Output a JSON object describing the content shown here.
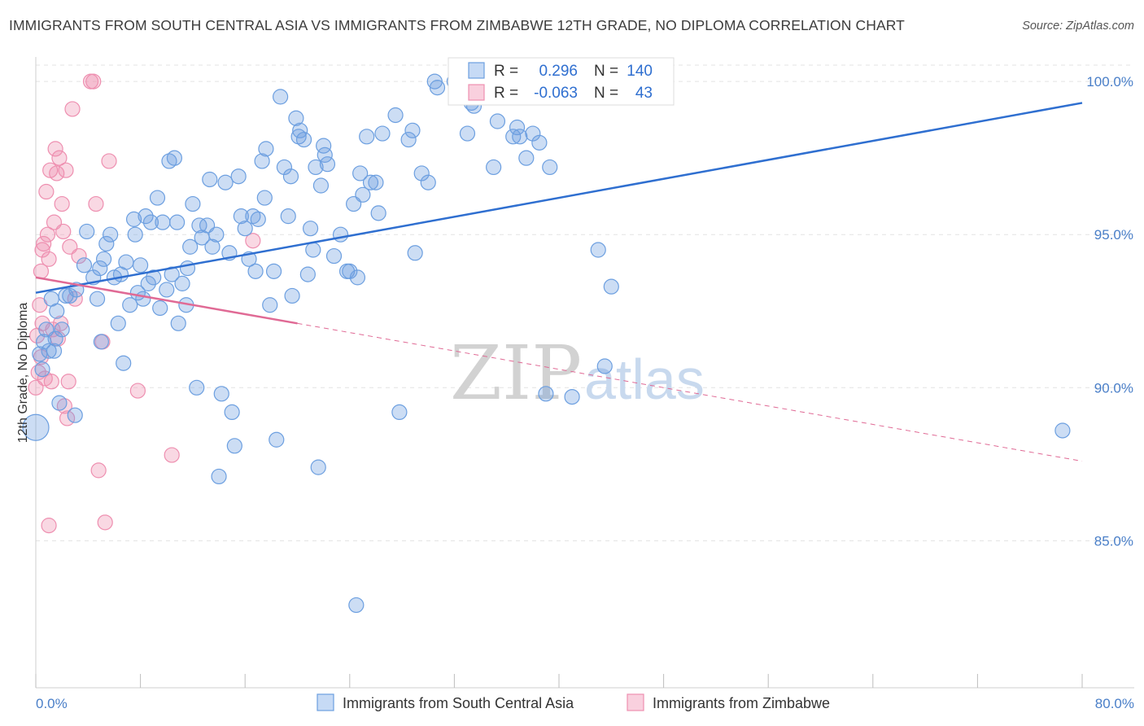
{
  "header": {
    "title": "IMMIGRANTS FROM SOUTH CENTRAL ASIA VS IMMIGRANTS FROM ZIMBABWE 12TH GRADE, NO DIPLOMA CORRELATION CHART",
    "source": "Source: ZipAtlas.com"
  },
  "watermark": {
    "zip": "ZIP",
    "atlas": "atlas"
  },
  "legend_box": {
    "rows": [
      {
        "r_label": "R =",
        "r_value": "0.296",
        "n_label": "N =",
        "n_value": "140"
      },
      {
        "r_label": "R =",
        "r_value": "-0.063",
        "n_label": "N =",
        "n_value": "43"
      }
    ]
  },
  "chart_data": {
    "type": "scatter",
    "title": "IMMIGRANTS FROM SOUTH CENTRAL ASIA VS IMMIGRANTS FROM ZIMBABWE 12TH GRADE, NO DIPLOMA CORRELATION CHART",
    "xlabel": "",
    "ylabel": "12th Grade, No Diploma",
    "xlim": [
      0,
      80
    ],
    "ylim": [
      80.2,
      100.8
    ],
    "x_tick_labels": [
      "0.0%",
      "80.0%"
    ],
    "y_ticks": [
      85,
      90,
      95,
      100
    ],
    "y_tick_labels": [
      "85.0%",
      "90.0%",
      "95.0%",
      "100.0%"
    ],
    "grid": true,
    "legend_position": "bottom",
    "colors": {
      "series1": "#6c9fe0",
      "series2": "#ee8fb0",
      "line1": "#2f6fd0",
      "line2": "#e06a95"
    },
    "series": [
      {
        "name": "Immigrants from South Central Asia",
        "r": 0.296,
        "n": 140,
        "trend": {
          "x": [
            0,
            80
          ],
          "y": [
            93.1,
            99.3
          ]
        },
        "points": [
          [
            0.0,
            88.7
          ],
          [
            0.3,
            91.1
          ],
          [
            0.5,
            90.6
          ],
          [
            0.6,
            91.5
          ],
          [
            0.8,
            91.9
          ],
          [
            1.0,
            91.2
          ],
          [
            1.2,
            92.9
          ],
          [
            1.4,
            91.2
          ],
          [
            1.5,
            91.6
          ],
          [
            1.6,
            92.5
          ],
          [
            1.8,
            89.5
          ],
          [
            2.0,
            91.9
          ],
          [
            2.3,
            93.0
          ],
          [
            2.6,
            93.0
          ],
          [
            3.0,
            89.1
          ],
          [
            3.1,
            93.2
          ],
          [
            3.7,
            94.0
          ],
          [
            3.9,
            95.1
          ],
          [
            4.4,
            93.6
          ],
          [
            4.7,
            92.9
          ],
          [
            4.9,
            93.9
          ],
          [
            5.0,
            91.5
          ],
          [
            5.2,
            94.2
          ],
          [
            5.4,
            94.7
          ],
          [
            5.7,
            95.0
          ],
          [
            6.0,
            93.6
          ],
          [
            6.3,
            92.1
          ],
          [
            6.5,
            93.7
          ],
          [
            6.7,
            90.8
          ],
          [
            6.9,
            94.1
          ],
          [
            7.2,
            92.7
          ],
          [
            7.5,
            95.5
          ],
          [
            7.6,
            95.0
          ],
          [
            7.8,
            93.1
          ],
          [
            8.0,
            94.0
          ],
          [
            8.2,
            92.9
          ],
          [
            8.4,
            95.6
          ],
          [
            8.6,
            93.4
          ],
          [
            8.8,
            95.4
          ],
          [
            9.0,
            93.6
          ],
          [
            9.3,
            96.2
          ],
          [
            9.5,
            92.6
          ],
          [
            9.7,
            95.4
          ],
          [
            10.0,
            93.2
          ],
          [
            10.2,
            97.4
          ],
          [
            10.4,
            93.7
          ],
          [
            10.6,
            97.5
          ],
          [
            10.8,
            95.4
          ],
          [
            10.9,
            92.1
          ],
          [
            11.2,
            93.4
          ],
          [
            11.5,
            92.7
          ],
          [
            11.6,
            93.9
          ],
          [
            11.8,
            94.6
          ],
          [
            12.0,
            96.0
          ],
          [
            12.3,
            90.0
          ],
          [
            12.5,
            95.3
          ],
          [
            12.7,
            94.9
          ],
          [
            13.1,
            95.3
          ],
          [
            13.3,
            96.8
          ],
          [
            13.5,
            94.6
          ],
          [
            13.8,
            95.0
          ],
          [
            14.2,
            89.8
          ],
          [
            14.0,
            87.1
          ],
          [
            14.5,
            96.7
          ],
          [
            14.8,
            94.4
          ],
          [
            15.0,
            89.2
          ],
          [
            15.2,
            88.1
          ],
          [
            15.5,
            96.9
          ],
          [
            15.7,
            95.6
          ],
          [
            16.0,
            95.2
          ],
          [
            16.3,
            94.2
          ],
          [
            16.6,
            95.6
          ],
          [
            16.8,
            93.8
          ],
          [
            17.0,
            95.5
          ],
          [
            17.3,
            97.4
          ],
          [
            17.5,
            96.2
          ],
          [
            17.6,
            97.8
          ],
          [
            17.9,
            92.7
          ],
          [
            18.2,
            93.8
          ],
          [
            18.4,
            88.3
          ],
          [
            18.7,
            99.5
          ],
          [
            19.0,
            97.2
          ],
          [
            19.3,
            95.6
          ],
          [
            19.5,
            96.9
          ],
          [
            19.6,
            93.0
          ],
          [
            19.9,
            98.8
          ],
          [
            20.1,
            98.2
          ],
          [
            20.2,
            98.4
          ],
          [
            20.5,
            98.1
          ],
          [
            20.8,
            93.7
          ],
          [
            21.0,
            95.2
          ],
          [
            21.2,
            94.5
          ],
          [
            21.4,
            97.2
          ],
          [
            21.6,
            87.4
          ],
          [
            21.8,
            96.6
          ],
          [
            22.0,
            97.9
          ],
          [
            22.1,
            97.6
          ],
          [
            22.3,
            97.3
          ],
          [
            22.8,
            94.3
          ],
          [
            23.3,
            95.0
          ],
          [
            23.8,
            93.8
          ],
          [
            24.0,
            93.8
          ],
          [
            24.3,
            96.0
          ],
          [
            24.5,
            82.9
          ],
          [
            24.6,
            93.6
          ],
          [
            24.8,
            97.0
          ],
          [
            25.0,
            96.3
          ],
          [
            25.3,
            98.2
          ],
          [
            25.6,
            96.7
          ],
          [
            26.0,
            96.7
          ],
          [
            26.2,
            95.7
          ],
          [
            26.5,
            98.3
          ],
          [
            27.5,
            98.9
          ],
          [
            27.8,
            89.2
          ],
          [
            28.5,
            98.1
          ],
          [
            28.8,
            98.4
          ],
          [
            29.0,
            94.4
          ],
          [
            29.5,
            97.0
          ],
          [
            30.0,
            96.7
          ],
          [
            30.5,
            100.0
          ],
          [
            32.0,
            100.0
          ],
          [
            33.0,
            98.3
          ],
          [
            33.3,
            99.3
          ],
          [
            33.5,
            99.2
          ],
          [
            35.0,
            97.2
          ],
          [
            35.3,
            98.7
          ],
          [
            36.5,
            98.2
          ],
          [
            36.8,
            98.5
          ],
          [
            37.0,
            98.2
          ],
          [
            37.5,
            97.5
          ],
          [
            38.0,
            98.3
          ],
          [
            38.5,
            98.0
          ],
          [
            39.0,
            89.8
          ],
          [
            39.3,
            97.2
          ],
          [
            41.0,
            89.7
          ],
          [
            43.0,
            94.5
          ],
          [
            43.5,
            90.7
          ],
          [
            44.0,
            93.3
          ],
          [
            78.5,
            88.6
          ],
          [
            30.7,
            99.8
          ]
        ]
      },
      {
        "name": "Immigrants from Zimbabwe",
        "r": -0.063,
        "n": 43,
        "trend": {
          "x": [
            0,
            20
          ],
          "y": [
            93.6,
            92.1
          ]
        },
        "trend_extended": {
          "x": [
            20,
            80
          ],
          "y": [
            92.1,
            87.6
          ]
        },
        "points": [
          [
            0.0,
            90.0
          ],
          [
            0.1,
            91.7
          ],
          [
            0.2,
            90.5
          ],
          [
            0.3,
            92.7
          ],
          [
            0.4,
            93.8
          ],
          [
            0.5,
            94.5
          ],
          [
            0.6,
            94.7
          ],
          [
            0.7,
            90.3
          ],
          [
            0.8,
            96.4
          ],
          [
            0.9,
            95.0
          ],
          [
            1.0,
            94.2
          ],
          [
            1.1,
            97.1
          ],
          [
            1.2,
            90.2
          ],
          [
            1.3,
            91.9
          ],
          [
            1.4,
            95.4
          ],
          [
            1.5,
            97.8
          ],
          [
            1.6,
            97.0
          ],
          [
            1.7,
            91.6
          ],
          [
            1.8,
            97.5
          ],
          [
            1.9,
            92.1
          ],
          [
            2.0,
            96.0
          ],
          [
            2.1,
            95.1
          ],
          [
            2.2,
            89.4
          ],
          [
            2.3,
            97.1
          ],
          [
            2.4,
            89.0
          ],
          [
            2.5,
            90.2
          ],
          [
            2.6,
            94.6
          ],
          [
            2.8,
            99.1
          ],
          [
            3.0,
            92.9
          ],
          [
            3.3,
            94.3
          ],
          [
            4.2,
            100.0
          ],
          [
            4.4,
            100.0
          ],
          [
            4.6,
            96.0
          ],
          [
            4.8,
            87.3
          ],
          [
            5.1,
            91.5
          ],
          [
            5.3,
            85.6
          ],
          [
            5.6,
            97.4
          ],
          [
            7.8,
            89.9
          ],
          [
            10.4,
            87.8
          ],
          [
            16.6,
            94.8
          ],
          [
            1.0,
            85.5
          ],
          [
            0.5,
            92.1
          ],
          [
            0.4,
            91.0
          ]
        ]
      }
    ]
  },
  "bottom_legend": [
    {
      "label": "Immigrants from South Central Asia"
    },
    {
      "label": "Immigrants from Zimbabwe"
    }
  ]
}
